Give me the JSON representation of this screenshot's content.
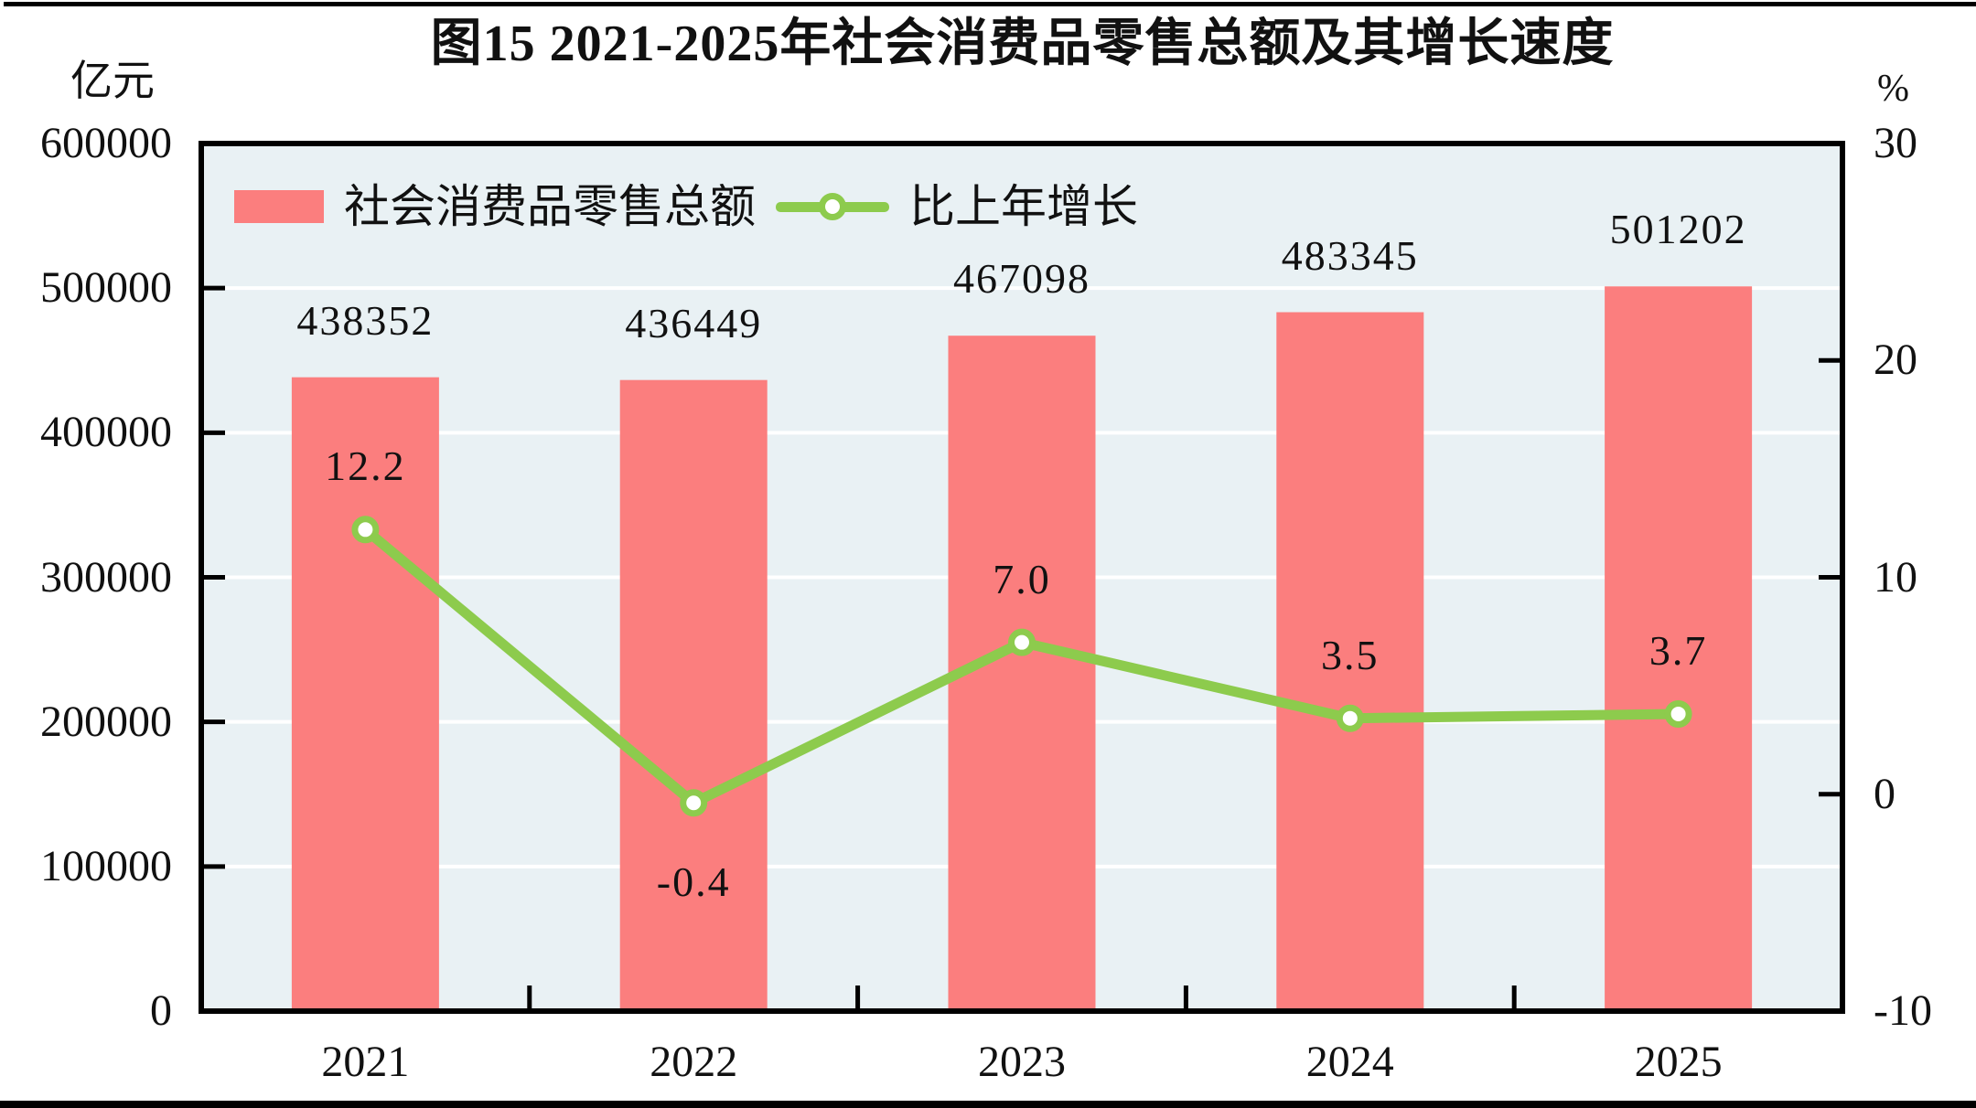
{
  "figure": {
    "top_rule": "black horizontal rule",
    "bottom_rule": "black horizontal rule"
  },
  "chart_data": {
    "type": "bar+line",
    "title": "图15  2021-2025年社会消费品零售总额及其增长速度",
    "categories": [
      "2021",
      "2022",
      "2023",
      "2024",
      "2025"
    ],
    "series": [
      {
        "name": "社会消费品零售总额",
        "type": "bar",
        "axis": "left",
        "color": "#fb7e7e",
        "values": [
          438352,
          436449,
          467098,
          483345,
          501202
        ],
        "data_labels": [
          "438352",
          "436449",
          "467098",
          "483345",
          "501202"
        ]
      },
      {
        "name": "比上年增长",
        "type": "line",
        "axis": "right",
        "color": "#8dcb4d",
        "marker": "open-circle-white-fill",
        "values": [
          12.2,
          -0.4,
          7.0,
          3.5,
          3.7
        ],
        "data_labels": [
          "12.2",
          "-0.4",
          "7.0",
          "3.5",
          "3.7"
        ]
      }
    ],
    "left_axis": {
      "label": "亿元",
      "min": 0,
      "max": 600000,
      "step": 100000,
      "tick_labels": [
        "600000",
        "500000",
        "400000",
        "300000",
        "200000",
        "100000",
        "0"
      ]
    },
    "right_axis": {
      "label": "%",
      "min": -10,
      "max": 30,
      "step": 10,
      "tick_labels": [
        "30",
        "20",
        "10",
        "0",
        "-10"
      ]
    },
    "grid": {
      "horizontal": true,
      "color": "#ffffff"
    },
    "plot_bg": "#e9f1f4",
    "axis_color": "#000000",
    "legend_position": "top-left-inside"
  }
}
